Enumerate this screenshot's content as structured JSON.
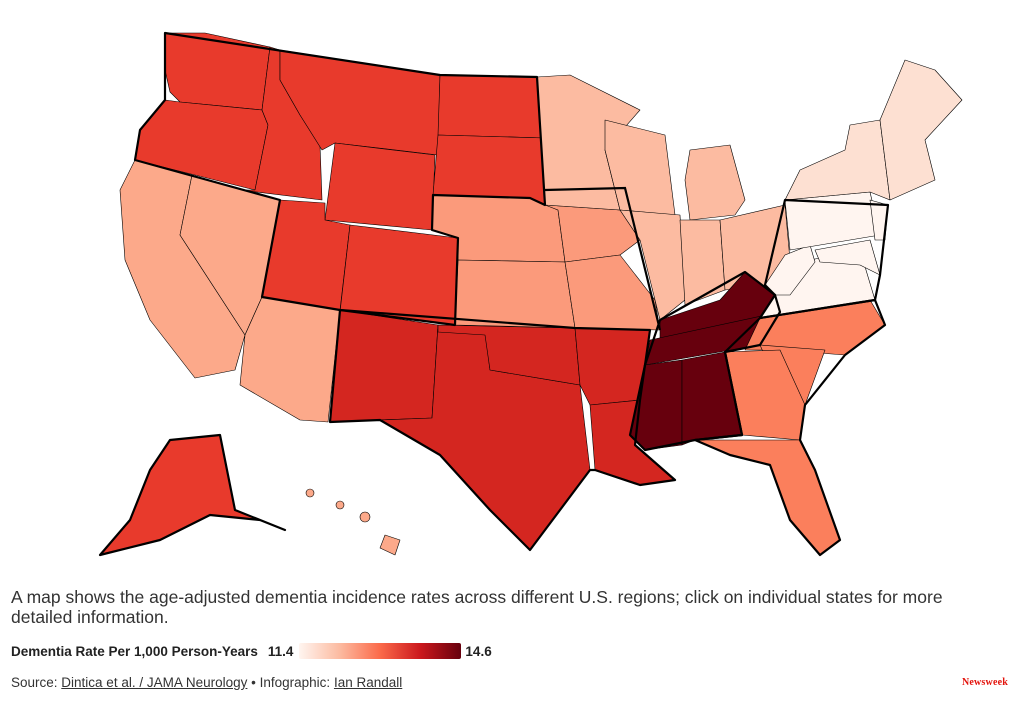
{
  "caption": "A map shows the age-adjusted dementia incidence rates across different U.S. regions; click on individual states for more detailed information.",
  "legend": {
    "title": "Dementia Rate Per 1,000 Person-Years",
    "min": "11.4",
    "max": "14.6",
    "colors": [
      "#fff5f0",
      "#fcbba1",
      "#fb6a4a",
      "#cb181d",
      "#67000d"
    ]
  },
  "source": {
    "prefix": "Source:",
    "link": "Dintica et al. / JAMA Neurology",
    "sep": "• Infographic:",
    "author": "Ian Randall"
  },
  "brand": "Newsweek",
  "region_colors": {
    "mountain_west": "#e83a2c",
    "south_central": "#d42620",
    "east_south_central": "#67000d",
    "south_atlantic": "#fb7f5c",
    "pacific_southwest": "#fca98a",
    "midwest": "#fcbba1",
    "northeast": "#fde0d2",
    "mid_atlantic": "#fff5f0",
    "plains": "#fb9a7b",
    "border": "#000000"
  }
}
